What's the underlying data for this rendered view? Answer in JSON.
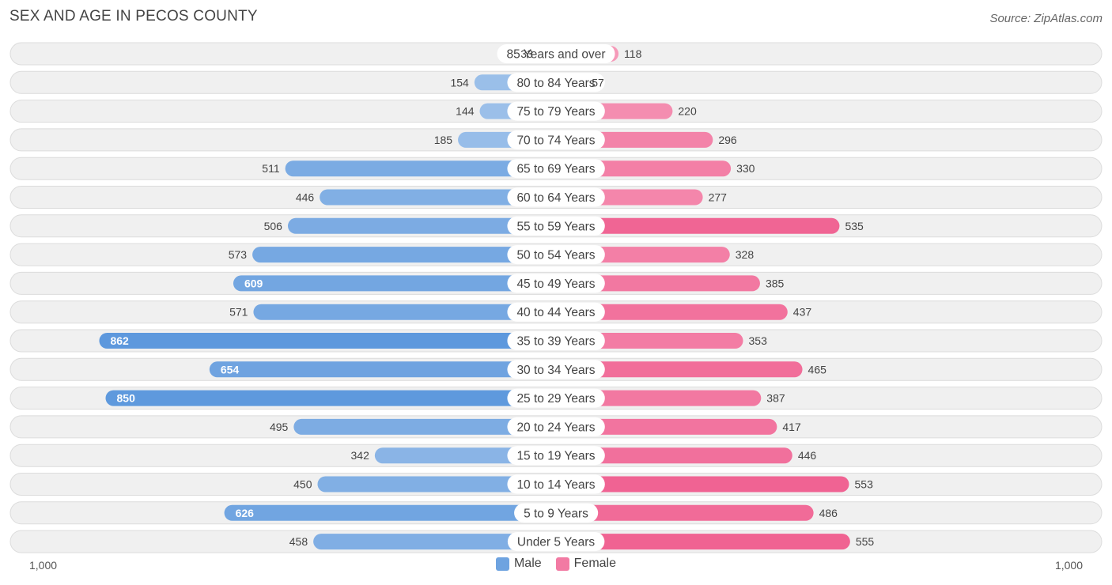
{
  "header": {
    "title": "SEX AND AGE IN PECOS COUNTY",
    "source": "Source: ZipAtlas.com"
  },
  "legend": {
    "male_label": "Male",
    "female_label": "Female"
  },
  "axis": {
    "left_label": "1,000",
    "right_label": "1,000"
  },
  "colors": {
    "male_light": "#a7c7ec",
    "male_strong": "#5a96dc",
    "female_light": "#f7a9c3",
    "female_strong": "#f06292",
    "track": "#f0f0f0",
    "track_border": "#dcdcdc"
  },
  "chart_data": {
    "type": "bar",
    "orientation": "horizontal-diverging",
    "title": "SEX AND AGE IN PECOS COUNTY",
    "xlim": [
      -1000,
      1000
    ],
    "categories": [
      "85 Years and over",
      "80 to 84 Years",
      "75 to 79 Years",
      "70 to 74 Years",
      "65 to 69 Years",
      "60 to 64 Years",
      "55 to 59 Years",
      "50 to 54 Years",
      "45 to 49 Years",
      "40 to 44 Years",
      "35 to 39 Years",
      "30 to 34 Years",
      "25 to 29 Years",
      "20 to 24 Years",
      "15 to 19 Years",
      "10 to 14 Years",
      "5 to 9 Years",
      "Under 5 Years"
    ],
    "series": [
      {
        "name": "Male",
        "values": [
          33,
          154,
          144,
          185,
          511,
          446,
          506,
          573,
          609,
          571,
          862,
          654,
          850,
          495,
          342,
          450,
          626,
          458
        ]
      },
      {
        "name": "Female",
        "values": [
          118,
          57,
          220,
          296,
          330,
          277,
          535,
          328,
          385,
          437,
          353,
          465,
          387,
          417,
          446,
          553,
          486,
          555
        ]
      }
    ],
    "legend_position": "bottom"
  }
}
